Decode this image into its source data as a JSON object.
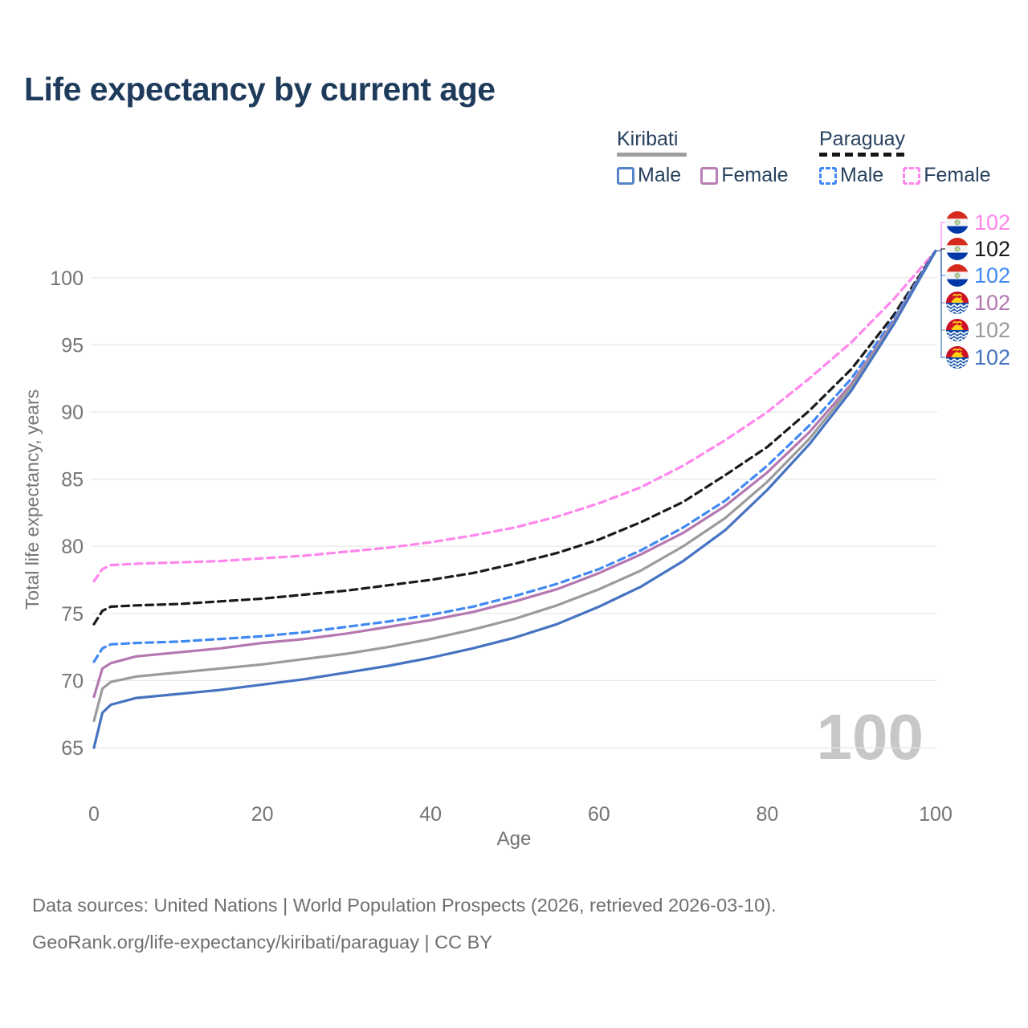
{
  "header": {
    "title": "Life expectancy by current age"
  },
  "legend": {
    "groups": [
      {
        "name": "Kiribati",
        "style": "solid",
        "underline_color": "#9e9e9e",
        "items": [
          {
            "label": "Male"
          },
          {
            "label": "Female"
          }
        ]
      },
      {
        "name": "Paraguay",
        "style": "dashed",
        "underline_color": "#161616",
        "items": [
          {
            "label": "Male"
          },
          {
            "label": "Female"
          }
        ]
      }
    ]
  },
  "chart_data": {
    "type": "line",
    "title": "Life expectancy by current age",
    "xlabel": "Age",
    "ylabel": "Total life expectancy, years",
    "xlim": [
      0,
      100
    ],
    "ylim": [
      64,
      103
    ],
    "x_ticks": [
      0,
      20,
      40,
      60,
      80,
      100
    ],
    "y_ticks": [
      65,
      70,
      75,
      80,
      85,
      90,
      95,
      100
    ],
    "grid": true,
    "legend_position": "top-right",
    "watermark": "100",
    "x": [
      0,
      1,
      2,
      5,
      10,
      15,
      20,
      25,
      30,
      35,
      40,
      45,
      50,
      55,
      60,
      65,
      70,
      75,
      80,
      85,
      90,
      95,
      100
    ],
    "series": [
      {
        "name": "Paraguay Female",
        "country": "Paraguay",
        "sex": "Female",
        "color": "#ff86ec",
        "dash": true,
        "flag": "paraguay",
        "end_label": "102",
        "end_value": 102,
        "values": [
          77.4,
          78.3,
          78.6,
          78.7,
          78.8,
          78.9,
          79.1,
          79.3,
          79.6,
          79.9,
          80.3,
          80.8,
          81.4,
          82.2,
          83.2,
          84.4,
          86.0,
          87.9,
          90.0,
          92.5,
          95.2,
          98.4,
          102
        ]
      },
      {
        "name": "Paraguay",
        "country": "Paraguay",
        "sex": "Both",
        "color": "#1a1a1a",
        "dash": true,
        "flag": "paraguay",
        "end_label": "102",
        "end_value": 102,
        "values": [
          74.2,
          75.2,
          75.5,
          75.6,
          75.7,
          75.9,
          76.1,
          76.4,
          76.7,
          77.1,
          77.5,
          78.0,
          78.7,
          79.5,
          80.5,
          81.8,
          83.3,
          85.3,
          87.4,
          90.1,
          93.2,
          97.2,
          102
        ]
      },
      {
        "name": "Paraguay Male",
        "country": "Paraguay",
        "sex": "Male",
        "color": "#4189f2",
        "dash": true,
        "flag": "paraguay",
        "end_label": "102",
        "end_value": 102,
        "values": [
          71.4,
          72.4,
          72.7,
          72.8,
          72.9,
          73.1,
          73.3,
          73.6,
          74.0,
          74.4,
          74.9,
          75.5,
          76.3,
          77.2,
          78.3,
          79.7,
          81.4,
          83.4,
          86.0,
          89.0,
          92.5,
          96.9,
          102
        ]
      },
      {
        "name": "Kiribati Female",
        "country": "Kiribati",
        "sex": "Female",
        "color": "#b478b0",
        "dash": false,
        "flag": "kiribati",
        "end_label": "102",
        "end_value": 102,
        "values": [
          68.8,
          70.9,
          71.3,
          71.8,
          72.1,
          72.4,
          72.8,
          73.1,
          73.5,
          74.0,
          74.5,
          75.1,
          75.9,
          76.8,
          78.0,
          79.4,
          81.0,
          83.0,
          85.5,
          88.5,
          92.1,
          96.7,
          102
        ]
      },
      {
        "name": "Kiribati",
        "country": "Kiribati",
        "sex": "Both",
        "color": "#9b9b9b",
        "dash": false,
        "flag": "kiribati",
        "end_label": "102",
        "end_value": 102,
        "values": [
          67.0,
          69.4,
          69.9,
          70.3,
          70.6,
          70.9,
          71.2,
          71.6,
          72.0,
          72.5,
          73.1,
          73.8,
          74.6,
          75.6,
          76.8,
          78.2,
          80.0,
          82.1,
          84.8,
          88.0,
          91.9,
          96.6,
          102
        ]
      },
      {
        "name": "Kiribati Male",
        "country": "Kiribati",
        "sex": "Male",
        "color": "#4673c1",
        "dash": false,
        "flag": "kiribati",
        "end_label": "102",
        "end_value": 102,
        "values": [
          65.0,
          67.6,
          68.2,
          68.7,
          69.0,
          69.3,
          69.7,
          70.1,
          70.6,
          71.1,
          71.7,
          72.4,
          73.2,
          74.2,
          75.5,
          77.0,
          78.9,
          81.2,
          84.2,
          87.6,
          91.6,
          96.5,
          102
        ]
      }
    ]
  },
  "footer": {
    "line1": "Data sources: United Nations | World Population Prospects (2026, retrieved 2026-03-10).",
    "line2": "GeoRank.org/life-expectancy/kiribati/paraguay | CC BY"
  }
}
